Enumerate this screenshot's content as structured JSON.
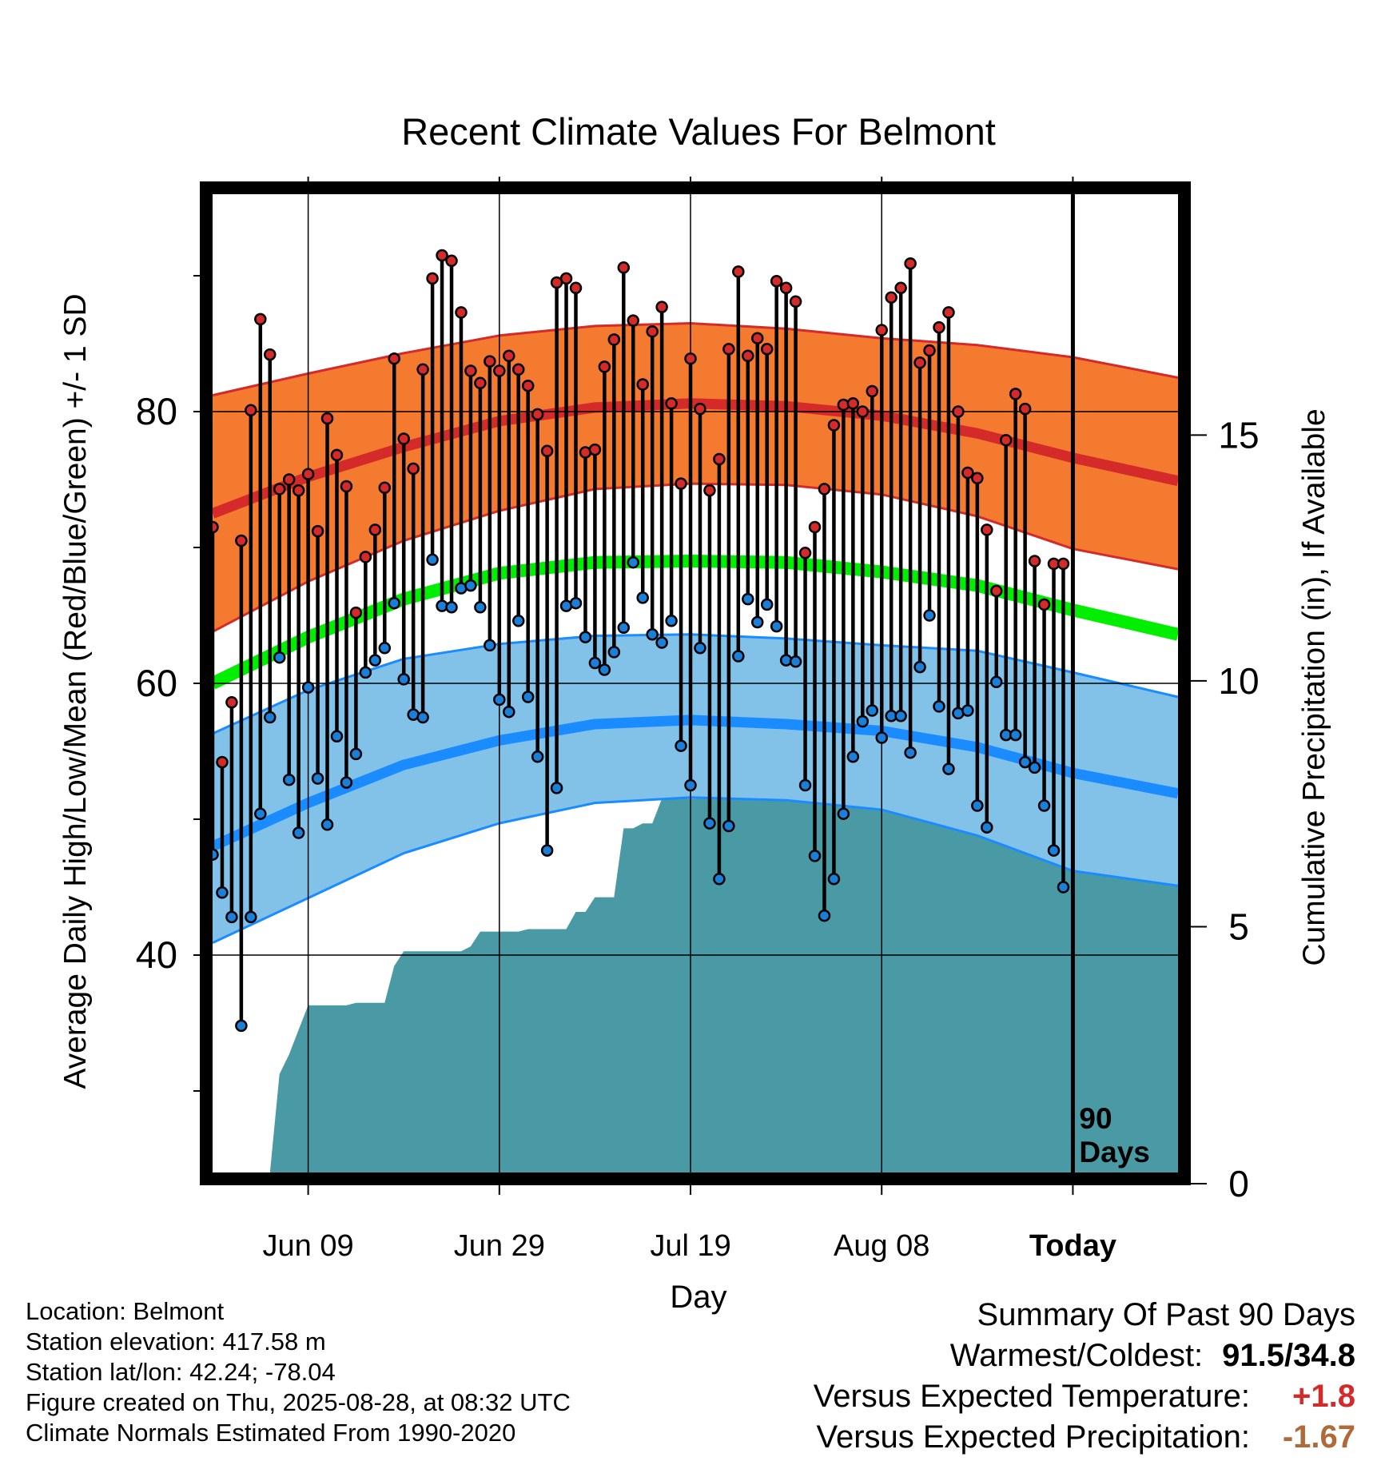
{
  "chart_data": {
    "type": "line",
    "title": "Recent Climate Values For Belmont",
    "xlabel": "Day",
    "ylabel": "Average Daily High/Low/Mean (Red/Blue/Green) +/- 1 SD",
    "y2label": "Cumulative Precipitation (in), If Available",
    "x_ticks": [
      "Jun 09",
      "Jun 29",
      "Jul 19",
      "Aug 08",
      "Today"
    ],
    "x_tick_days": [
      10,
      30,
      50,
      70,
      90
    ],
    "xlim": [
      0,
      101
    ],
    "ylim": [
      24,
      96
    ],
    "y_ticks": [
      40,
      60,
      80
    ],
    "y_minor_ticks": [
      30,
      50,
      70,
      90
    ],
    "y2lim": [
      0,
      19.9
    ],
    "y2_ticks": [
      0,
      5,
      10,
      15
    ],
    "grid": true,
    "today_marker": {
      "day": 90,
      "label_line1": "90",
      "label_line2": "Days"
    },
    "normals": {
      "x": [
        0,
        10,
        20,
        30,
        40,
        50,
        60,
        70,
        80,
        90,
        101
      ],
      "high_mean": [
        72.5,
        75.2,
        77.4,
        79.3,
        80.3,
        80.6,
        80.4,
        79.7,
        78.4,
        76.6,
        74.9
      ],
      "high_sd_upper": [
        81.2,
        82.8,
        84.3,
        85.6,
        86.3,
        86.5,
        86.1,
        85.4,
        84.9,
        84.0,
        82.5
      ],
      "high_sd_lower": [
        63.8,
        67.5,
        70.5,
        72.7,
        74.3,
        74.7,
        74.6,
        73.9,
        72.3,
        69.9,
        68.4
      ],
      "mean_normal": [
        60.0,
        63.4,
        66.2,
        68.1,
        68.9,
        69.0,
        68.9,
        68.2,
        67.2,
        65.4,
        63.6
      ],
      "low_mean": [
        48.0,
        51.2,
        54.0,
        55.8,
        57.0,
        57.3,
        57.0,
        56.5,
        55.3,
        53.4,
        51.9
      ],
      "low_sd_upper": [
        56.3,
        59.5,
        61.8,
        62.9,
        63.5,
        63.6,
        63.3,
        62.8,
        62.4,
        60.8,
        59.0
      ],
      "low_sd_lower": [
        40.9,
        44.2,
        47.5,
        49.7,
        51.2,
        51.6,
        51.4,
        50.7,
        48.8,
        46.2,
        45.1
      ]
    },
    "series": [
      {
        "name": "High",
        "color": "#d42a2a",
        "x": [
          0,
          1,
          2,
          3,
          4,
          5,
          6,
          7,
          8,
          9,
          10,
          11,
          12,
          13,
          14,
          15,
          16,
          17,
          18,
          19,
          20,
          21,
          22,
          23,
          24,
          25,
          26,
          27,
          28,
          29,
          30,
          31,
          32,
          33,
          34,
          35,
          36,
          37,
          38,
          39,
          40,
          41,
          42,
          43,
          44,
          45,
          46,
          47,
          48,
          49,
          50,
          51,
          52,
          53,
          54,
          55,
          56,
          57,
          58,
          59,
          60,
          61,
          62,
          63,
          64,
          65,
          66,
          67,
          68,
          69,
          70,
          71,
          72,
          73,
          74,
          75,
          76,
          77,
          78,
          79,
          80,
          81,
          82,
          83,
          84,
          85,
          86,
          87,
          88,
          89
        ],
        "values": [
          71.5,
          54.2,
          58.6,
          70.5,
          80.1,
          86.8,
          84.2,
          74.3,
          75.0,
          74.2,
          75.4,
          71.2,
          79.5,
          76.8,
          74.5,
          65.2,
          69.3,
          71.3,
          74.4,
          83.9,
          78.0,
          75.8,
          83.1,
          89.8,
          91.5,
          91.1,
          87.3,
          83.0,
          82.1,
          83.7,
          83.0,
          84.1,
          83.1,
          81.9,
          79.8,
          77.1,
          89.5,
          89.8,
          89.1,
          77.0,
          77.2,
          83.3,
          85.3,
          90.6,
          86.7,
          82.0,
          85.9,
          87.7,
          80.6,
          74.7,
          83.9,
          80.2,
          74.2,
          76.5,
          84.6,
          90.3,
          84.1,
          85.4,
          84.6,
          89.6,
          89.1,
          88.1,
          69.6,
          71.5,
          74.3,
          79.0,
          80.5,
          80.6,
          80.0,
          81.5,
          86.0,
          88.4,
          89.1,
          90.9,
          83.6,
          84.5,
          86.2,
          87.3,
          80.0,
          75.5,
          75.1,
          71.3,
          66.8,
          77.9,
          81.3,
          80.2,
          69.0,
          65.8,
          68.8,
          68.8
        ]
      },
      {
        "name": "Low",
        "color": "#1a7fd9",
        "x": [
          0,
          1,
          2,
          3,
          4,
          5,
          6,
          7,
          8,
          9,
          10,
          11,
          12,
          13,
          14,
          15,
          16,
          17,
          18,
          19,
          20,
          21,
          22,
          23,
          24,
          25,
          26,
          27,
          28,
          29,
          30,
          31,
          32,
          33,
          34,
          35,
          36,
          37,
          38,
          39,
          40,
          41,
          42,
          43,
          44,
          45,
          46,
          47,
          48,
          49,
          50,
          51,
          52,
          53,
          54,
          55,
          56,
          57,
          58,
          59,
          60,
          61,
          62,
          63,
          64,
          65,
          66,
          67,
          68,
          69,
          70,
          71,
          72,
          73,
          74,
          75,
          76,
          77,
          78,
          79,
          80,
          81,
          82,
          83,
          84,
          85,
          86,
          87,
          88,
          89
        ],
        "values": [
          47.4,
          44.6,
          42.8,
          34.8,
          42.8,
          50.4,
          57.5,
          61.9,
          52.9,
          49.0,
          59.7,
          53.0,
          49.6,
          56.1,
          52.7,
          54.8,
          60.8,
          61.7,
          62.6,
          65.9,
          60.3,
          57.7,
          57.5,
          69.1,
          65.7,
          65.6,
          67.0,
          67.2,
          65.6,
          62.8,
          58.8,
          57.9,
          64.6,
          59.0,
          54.6,
          47.7,
          52.3,
          65.7,
          65.9,
          63.4,
          61.5,
          61.0,
          62.3,
          64.1,
          68.9,
          66.3,
          63.6,
          63.0,
          64.6,
          55.4,
          52.5,
          62.6,
          49.7,
          45.6,
          49.5,
          62.0,
          66.2,
          64.5,
          65.8,
          64.2,
          61.7,
          61.6,
          52.5,
          47.3,
          42.9,
          45.6,
          50.4,
          54.6,
          57.2,
          58.0,
          56.0,
          57.6,
          57.6,
          54.9,
          61.2,
          65.0,
          58.3,
          53.7,
          57.8,
          58.0,
          51.0,
          49.4,
          60.1,
          56.2,
          56.2,
          54.2,
          53.8,
          51.0,
          47.7,
          45.0
        ]
      },
      {
        "name": "Cumulative Precipitation",
        "x": [
          6,
          7,
          8,
          9,
          10,
          11,
          12,
          13,
          14,
          15,
          16,
          17,
          18,
          19,
          20,
          21,
          22,
          23,
          24,
          25,
          26,
          27,
          28,
          29,
          30,
          31,
          32,
          33,
          34,
          35,
          36,
          37,
          38,
          39,
          40,
          41,
          42,
          43,
          44,
          45,
          46,
          47,
          48,
          49,
          50,
          51,
          52,
          53,
          54,
          55,
          56,
          57,
          58,
          59,
          60,
          61,
          62,
          63,
          64,
          65,
          66,
          67,
          68,
          69,
          70,
          71,
          72,
          73,
          74,
          75,
          76,
          77,
          78,
          79,
          80,
          81,
          82,
          83,
          84,
          85,
          86,
          87,
          88,
          89,
          90,
          91,
          92,
          93,
          94,
          95,
          96,
          97,
          98,
          99,
          100,
          101
        ],
        "values": [
          0.0,
          2.0,
          2.4,
          2.9,
          3.4,
          3.4,
          3.4,
          3.4,
          3.4,
          3.45,
          3.45,
          3.45,
          3.45,
          4.2,
          4.5,
          4.5,
          4.5,
          4.5,
          4.5,
          4.5,
          4.5,
          4.6,
          4.9,
          4.9,
          4.9,
          4.9,
          4.9,
          4.95,
          4.95,
          4.95,
          4.95,
          4.95,
          5.3,
          5.3,
          5.6,
          5.6,
          5.6,
          7.0,
          7.0,
          7.1,
          7.1,
          7.6,
          7.6,
          7.6,
          7.6,
          7.6,
          7.6,
          7.6,
          7.6,
          7.6,
          7.6,
          7.6,
          7.6,
          8.0,
          8.0,
          8.0,
          8.0,
          8.0,
          9.35,
          9.35,
          9.35,
          9.35,
          9.35,
          9.35,
          9.35,
          9.35,
          9.35,
          9.35,
          9.35,
          9.35,
          9.35,
          9.35,
          9.35,
          9.35,
          9.35,
          9.35,
          9.35,
          9.35,
          9.35,
          9.35,
          9.35,
          9.35,
          9.35,
          9.35,
          9.35,
          9.35,
          9.35,
          9.35,
          9.35,
          9.35,
          9.35,
          9.35,
          9.35,
          9.35,
          9.35,
          9.35
        ]
      }
    ]
  },
  "colors": {
    "high_band": "#f47a30",
    "high_line": "#d42a2a",
    "mean_line": "#00ee00",
    "low_band": "#82c2e8",
    "low_line": "#1a8cff",
    "precip_fill": "#4a9aa5",
    "warm": "#d42a2a",
    "precip_deficit": "#b06a3a"
  },
  "info": {
    "location": "Location: Belmont",
    "elevation": "Station elevation: 417.58 m",
    "latlon": "Station lat/lon: 42.24; -78.04",
    "created": "Figure created on Thu, 2025-08-28, at 08:32 UTC",
    "normals": "Climate Normals Estimated From 1990-2020"
  },
  "summary": {
    "title": "Summary Of Past 90 Days",
    "warm_cold_label": "Warmest/Coldest:",
    "warm_cold_value": "91.5/34.8",
    "temp_label": "Versus Expected Temperature:",
    "temp_value": "+1.8",
    "precip_label": "Versus Expected Precipitation:",
    "precip_value": "-1.67"
  }
}
